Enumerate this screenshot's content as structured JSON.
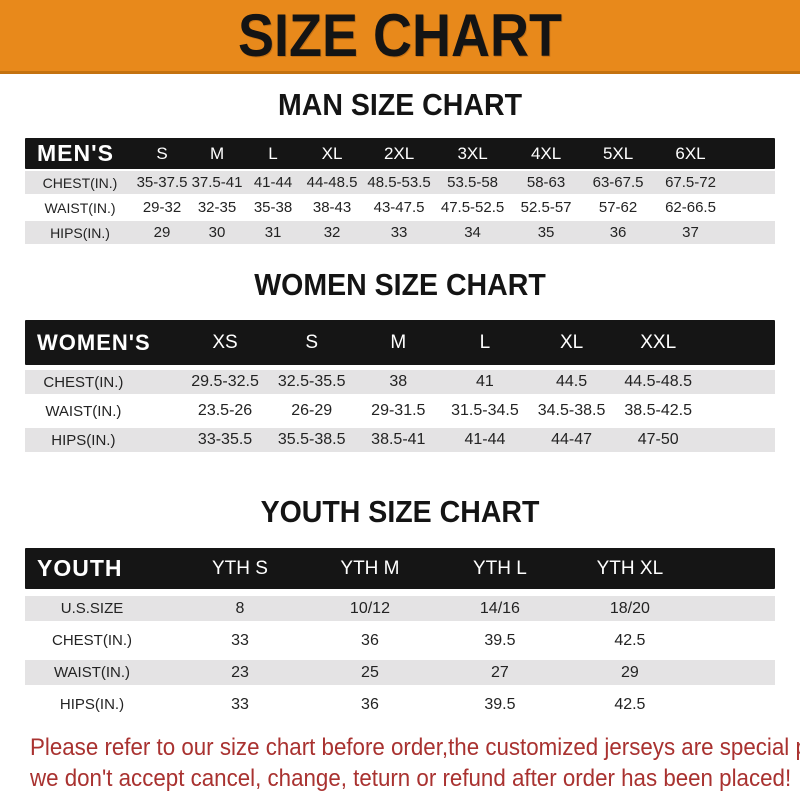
{
  "banner": {
    "title": "SIZE CHART"
  },
  "sections": [
    {
      "id": "men",
      "heading": "MAN SIZE CHART",
      "table": {
        "header_label": "MEN'S",
        "columns": [
          "S",
          "M",
          "L",
          "XL",
          "2XL",
          "3XL",
          "4XL",
          "5XL",
          "6XL"
        ],
        "rows": [
          {
            "label": "CHEST(IN.)",
            "values": [
              "35-37.5",
              "37.5-41",
              "41-44",
              "44-48.5",
              "48.5-53.5",
              "53.5-58",
              "58-63",
              "63-67.5",
              "67.5-72"
            ]
          },
          {
            "label": "WAIST(IN.)",
            "values": [
              "29-32",
              "32-35",
              "35-38",
              "38-43",
              "43-47.5",
              "47.5-52.5",
              "52.5-57",
              "57-62",
              "62-66.5"
            ]
          },
          {
            "label": "HIPS(IN.)",
            "values": [
              "29",
              "30",
              "31",
              "32",
              "33",
              "34",
              "35",
              "36",
              "37"
            ]
          }
        ]
      }
    },
    {
      "id": "women",
      "heading": "WOMEN SIZE CHART",
      "table": {
        "header_label": "WOMEN'S",
        "columns": [
          "XS",
          "S",
          "M",
          "L",
          "XL",
          "XXL"
        ],
        "rows": [
          {
            "label": "CHEST(IN.)",
            "values": [
              "29.5-32.5",
              "32.5-35.5",
              "38",
              "41",
              "44.5",
              "44.5-48.5"
            ]
          },
          {
            "label": "WAIST(IN.)",
            "values": [
              "23.5-26",
              "26-29",
              "29-31.5",
              "31.5-34.5",
              "34.5-38.5",
              "38.5-42.5"
            ]
          },
          {
            "label": "HIPS(IN.)",
            "values": [
              "33-35.5",
              "35.5-38.5",
              "38.5-41",
              "41-44",
              "44-47",
              "47-50"
            ]
          }
        ]
      }
    },
    {
      "id": "youth",
      "heading": "YOUTH SIZE CHART",
      "table": {
        "header_label": "YOUTH",
        "columns": [
          "YTH S",
          "YTH M",
          "YTH L",
          "YTH XL"
        ],
        "rows": [
          {
            "label": "U.S.SIZE",
            "values": [
              "8",
              "10/12",
              "14/16",
              "18/20"
            ]
          },
          {
            "label": "CHEST(IN.)",
            "values": [
              "33",
              "36",
              "39.5",
              "42.5"
            ]
          },
          {
            "label": "WAIST(IN.)",
            "values": [
              "23",
              "25",
              "27",
              "29"
            ]
          },
          {
            "label": "HIPS(IN.)",
            "values": [
              "33",
              "36",
              "39.5",
              "42.5"
            ]
          }
        ]
      }
    }
  ],
  "footer": {
    "lines": [
      "Please refer to our size chart before order,the customized jerseys are special products,",
      "we don't accept cancel, change, teturn or refund after order has been placed!"
    ]
  },
  "colors": {
    "banner_bg": "#E8891B",
    "banner_edge": "#C4720F",
    "header_bar": "#151515",
    "row_gray": "#E4E3E4",
    "footer_red": "#A93230"
  }
}
